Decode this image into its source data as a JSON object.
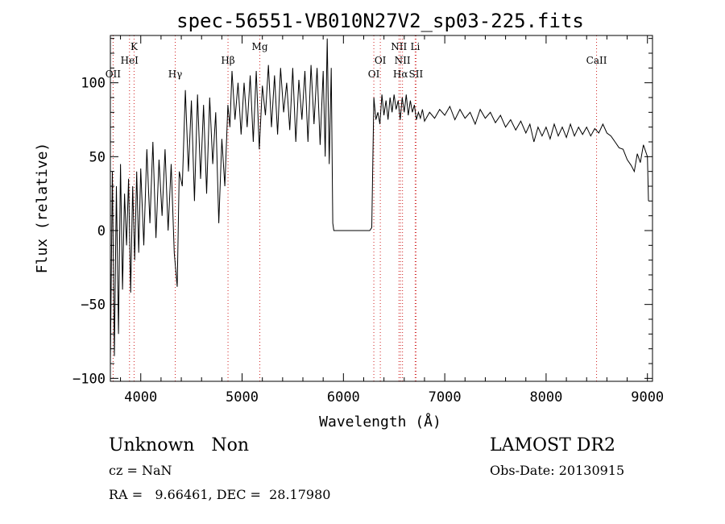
{
  "chart_data": {
    "type": "line",
    "title": "spec-56551-VB010N27V2_sp03-225.fits",
    "xlabel": "Wavelength (Å)",
    "ylabel": "Flux (relative)",
    "xlim": [
      3700,
      9050
    ],
    "ylim": [
      -102,
      132
    ],
    "x_ticks": [
      4000,
      5000,
      6000,
      7000,
      8000,
      9000
    ],
    "y_ticks": [
      -100,
      -50,
      0,
      50,
      100
    ],
    "x_tick_labels": [
      "4000",
      "5000",
      "6000",
      "7000",
      "8000",
      "9000"
    ],
    "y_tick_labels": [
      "−100",
      "−50",
      "0",
      "50",
      "100"
    ],
    "grid": false,
    "line_color": "#000000",
    "marker_color": "#d02020",
    "lines": [
      {
        "label": "OII",
        "wavelength": 3727,
        "row": 3
      },
      {
        "label": "K",
        "wavelength": 3934,
        "row": 0
      },
      {
        "label": "HeI",
        "wavelength": 3889,
        "row": 1
      },
      {
        "label": "Hγ",
        "wavelength": 4340,
        "row": 3
      },
      {
        "label": "Hβ",
        "wavelength": 4861,
        "row": 2
      },
      {
        "label": "Mg",
        "wavelength": 5175,
        "row": 0
      },
      {
        "label": "NII",
        "wavelength": 6548,
        "row": 0
      },
      {
        "label": "Li",
        "wavelength": 6708,
        "row": 0
      },
      {
        "label": "OI",
        "wavelength": 6364,
        "row": 2
      },
      {
        "label": "NII",
        "wavelength": 6583,
        "row": 2
      },
      {
        "label": "OI",
        "wavelength": 6300,
        "row": 3
      },
      {
        "label": "Hα",
        "wavelength": 6563,
        "row": 3
      },
      {
        "label": "SII",
        "wavelength": 6716,
        "row": 3
      },
      {
        "label": "CaII",
        "wavelength": 8498,
        "row": 2
      }
    ],
    "series": [
      {
        "points": [
          [
            3700,
            -90
          ],
          [
            3720,
            40
          ],
          [
            3740,
            -85
          ],
          [
            3760,
            30
          ],
          [
            3780,
            -70
          ],
          [
            3800,
            45
          ],
          [
            3820,
            -40
          ],
          [
            3840,
            25
          ],
          [
            3860,
            -10
          ],
          [
            3880,
            35
          ],
          [
            3900,
            -42
          ],
          [
            3920,
            30
          ],
          [
            3940,
            -20
          ],
          [
            3960,
            40
          ],
          [
            3980,
            -15
          ],
          [
            4000,
            42
          ],
          [
            4030,
            -10
          ],
          [
            4060,
            55
          ],
          [
            4090,
            5
          ],
          [
            4120,
            60
          ],
          [
            4150,
            -5
          ],
          [
            4180,
            48
          ],
          [
            4210,
            10
          ],
          [
            4240,
            55
          ],
          [
            4270,
            0
          ],
          [
            4300,
            45
          ],
          [
            4330,
            -15
          ],
          [
            4360,
            -38
          ],
          [
            4380,
            40
          ],
          [
            4410,
            30
          ],
          [
            4440,
            95
          ],
          [
            4470,
            40
          ],
          [
            4500,
            88
          ],
          [
            4530,
            20
          ],
          [
            4560,
            92
          ],
          [
            4590,
            35
          ],
          [
            4620,
            85
          ],
          [
            4650,
            25
          ],
          [
            4680,
            90
          ],
          [
            4710,
            45
          ],
          [
            4740,
            80
          ],
          [
            4770,
            5
          ],
          [
            4800,
            62
          ],
          [
            4830,
            30
          ],
          [
            4860,
            85
          ],
          [
            4880,
            70
          ],
          [
            4900,
            108
          ],
          [
            4930,
            75
          ],
          [
            4960,
            100
          ],
          [
            4990,
            65
          ],
          [
            5020,
            100
          ],
          [
            5050,
            70
          ],
          [
            5080,
            105
          ],
          [
            5110,
            60
          ],
          [
            5140,
            108
          ],
          [
            5170,
            55
          ],
          [
            5200,
            98
          ],
          [
            5230,
            78
          ],
          [
            5260,
            112
          ],
          [
            5290,
            70
          ],
          [
            5320,
            105
          ],
          [
            5350,
            65
          ],
          [
            5380,
            110
          ],
          [
            5410,
            80
          ],
          [
            5440,
            100
          ],
          [
            5470,
            68
          ],
          [
            5500,
            110
          ],
          [
            5530,
            60
          ],
          [
            5560,
            102
          ],
          [
            5590,
            75
          ],
          [
            5620,
            108
          ],
          [
            5650,
            60
          ],
          [
            5680,
            112
          ],
          [
            5710,
            72
          ],
          [
            5740,
            110
          ],
          [
            5770,
            58
          ],
          [
            5800,
            108
          ],
          [
            5820,
            50
          ],
          [
            5840,
            130
          ],
          [
            5860,
            45
          ],
          [
            5880,
            110
          ],
          [
            5895,
            5
          ],
          [
            5905,
            0
          ],
          [
            5950,
            0
          ],
          [
            6000,
            0
          ],
          [
            6050,
            0
          ],
          [
            6100,
            0
          ],
          [
            6150,
            0
          ],
          [
            6200,
            0
          ],
          [
            6260,
            0
          ],
          [
            6280,
            2
          ],
          [
            6300,
            90
          ],
          [
            6320,
            75
          ],
          [
            6340,
            80
          ],
          [
            6360,
            72
          ],
          [
            6380,
            92
          ],
          [
            6400,
            78
          ],
          [
            6420,
            88
          ],
          [
            6440,
            75
          ],
          [
            6460,
            90
          ],
          [
            6480,
            80
          ],
          [
            6500,
            92
          ],
          [
            6520,
            82
          ],
          [
            6540,
            88
          ],
          [
            6560,
            75
          ],
          [
            6580,
            90
          ],
          [
            6600,
            80
          ],
          [
            6620,
            92
          ],
          [
            6640,
            78
          ],
          [
            6660,
            88
          ],
          [
            6680,
            80
          ],
          [
            6700,
            85
          ],
          [
            6720,
            75
          ],
          [
            6740,
            80
          ],
          [
            6760,
            76
          ],
          [
            6780,
            82
          ],
          [
            6800,
            74
          ],
          [
            6850,
            80
          ],
          [
            6900,
            76
          ],
          [
            6950,
            82
          ],
          [
            7000,
            78
          ],
          [
            7050,
            84
          ],
          [
            7100,
            75
          ],
          [
            7150,
            82
          ],
          [
            7200,
            76
          ],
          [
            7250,
            80
          ],
          [
            7300,
            72
          ],
          [
            7350,
            82
          ],
          [
            7400,
            76
          ],
          [
            7450,
            80
          ],
          [
            7500,
            73
          ],
          [
            7550,
            78
          ],
          [
            7600,
            70
          ],
          [
            7650,
            75
          ],
          [
            7700,
            68
          ],
          [
            7750,
            74
          ],
          [
            7800,
            66
          ],
          [
            7840,
            72
          ],
          [
            7880,
            60
          ],
          [
            7920,
            70
          ],
          [
            7960,
            64
          ],
          [
            8000,
            70
          ],
          [
            8040,
            62
          ],
          [
            8080,
            72
          ],
          [
            8120,
            64
          ],
          [
            8160,
            70
          ],
          [
            8200,
            63
          ],
          [
            8240,
            72
          ],
          [
            8280,
            64
          ],
          [
            8320,
            70
          ],
          [
            8360,
            65
          ],
          [
            8400,
            70
          ],
          [
            8440,
            64
          ],
          [
            8480,
            69
          ],
          [
            8520,
            66
          ],
          [
            8560,
            72
          ],
          [
            8600,
            66
          ],
          [
            8640,
            64
          ],
          [
            8680,
            60
          ],
          [
            8720,
            56
          ],
          [
            8760,
            55
          ],
          [
            8800,
            48
          ],
          [
            8840,
            44
          ],
          [
            8870,
            40
          ],
          [
            8900,
            52
          ],
          [
            8930,
            46
          ],
          [
            8960,
            58
          ],
          [
            8980,
            54
          ],
          [
            9000,
            50
          ],
          [
            9010,
            20
          ]
        ]
      }
    ]
  },
  "info": {
    "class_text": "Unknown   Non",
    "cz_text": "cz = NaN",
    "coord_text": "RA =   9.66461, DEC =  28.17980",
    "survey_text": "LAMOST DR2",
    "obsdate_text": "Obs-Date: 20130915"
  }
}
